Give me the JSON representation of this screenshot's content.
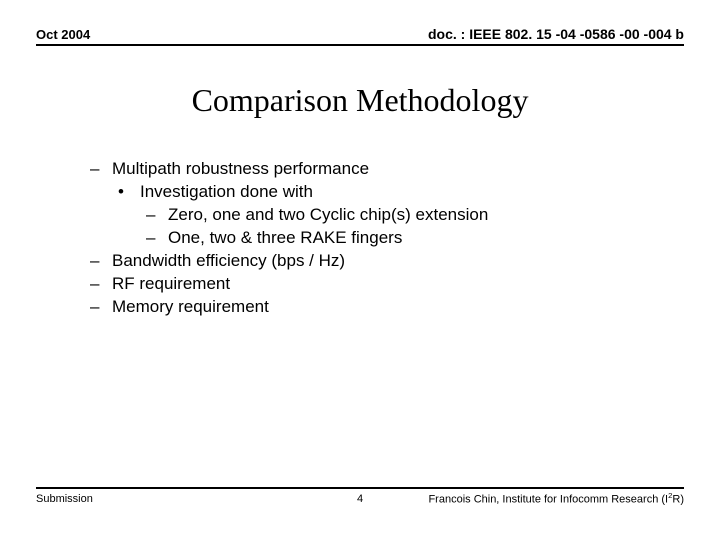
{
  "header": {
    "left": "Oct 2004",
    "right": "doc. : IEEE 802. 15 -04 -0586 -00 -004 b"
  },
  "title": "Comparison Methodology",
  "content": {
    "items": [
      {
        "level": 1,
        "bullet": "–",
        "text": "Multipath robustness performance"
      },
      {
        "level": 2,
        "bullet": "•",
        "text": "Investigation done with"
      },
      {
        "level": 3,
        "bullet": "–",
        "text": "Zero, one and two Cyclic chip(s) extension"
      },
      {
        "level": 3,
        "bullet": "–",
        "text": "One, two & three RAKE fingers"
      },
      {
        "level": 1,
        "bullet": "–",
        "text": "Bandwidth efficiency (bps / Hz)"
      },
      {
        "level": 1,
        "bullet": "–",
        "text": "RF requirement"
      },
      {
        "level": 1,
        "bullet": "–",
        "text": "Memory requirement"
      }
    ]
  },
  "footer": {
    "left": "Submission",
    "mid": "4",
    "right_prefix": "Francois Chin, Institute for Infocomm Research (I",
    "right_sup": "2",
    "right_suffix": "R)"
  }
}
